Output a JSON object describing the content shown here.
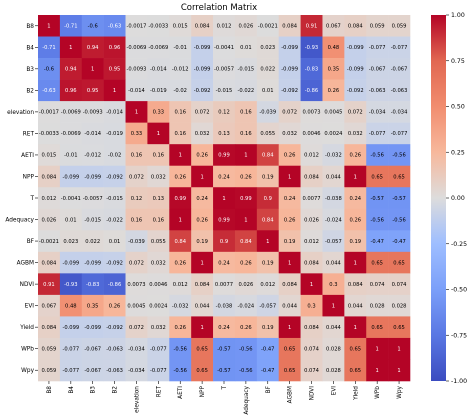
{
  "chart_data": {
    "type": "heatmap",
    "title": "Correlation Matrix",
    "labels": [
      "B8",
      "B4",
      "B3",
      "B2",
      "elevation",
      "RET",
      "AETI",
      "NPP",
      "T",
      "Adequacy",
      "BF",
      "AGBM",
      "NDVI",
      "EVI",
      "Yield",
      "WPb",
      "Wpy"
    ],
    "cells": [
      [
        "1",
        "-0.71",
        "-0.6",
        "-0.63",
        "-0.0017",
        "-0.0033",
        "0.015",
        "0.084",
        "0.012",
        "0.026",
        "-0.0021",
        "0.084",
        "0.91",
        "0.067",
        "0.084",
        "0.059",
        "0.059"
      ],
      [
        "-0.71",
        "1",
        "0.94",
        "0.96",
        "-0.0069",
        "-0.0069",
        "-0.01",
        "-0.099",
        "-0.0041",
        "0.01",
        "0.023",
        "-0.099",
        "-0.93",
        "0.48",
        "-0.099",
        "-0.077",
        "-0.077"
      ],
      [
        "-0.6",
        "0.94",
        "1",
        "0.95",
        "-0.0093",
        "-0.014",
        "-0.012",
        "-0.099",
        "-0.0057",
        "-0.015",
        "0.022",
        "-0.099",
        "-0.83",
        "0.35",
        "-0.099",
        "-0.067",
        "-0.067"
      ],
      [
        "-0.63",
        "0.96",
        "0.95",
        "1",
        "-0.014",
        "-0.019",
        "-0.02",
        "-0.092",
        "-0.015",
        "-0.022",
        "0.01",
        "-0.092",
        "-0.86",
        "0.26",
        "-0.092",
        "-0.063",
        "-0.063"
      ],
      [
        "-0.0017",
        "-0.0069",
        "-0.0093",
        "-0.014",
        "1",
        "0.33",
        "0.16",
        "0.072",
        "0.12",
        "0.16",
        "-0.039",
        "0.072",
        "0.0073",
        "0.0045",
        "0.072",
        "-0.034",
        "-0.034"
      ],
      [
        "-0.0033",
        "-0.0069",
        "-0.014",
        "-0.019",
        "0.33",
        "1",
        "0.16",
        "0.032",
        "0.13",
        "0.16",
        "0.055",
        "0.032",
        "0.0046",
        "0.0024",
        "0.032",
        "-0.077",
        "-0.077"
      ],
      [
        "0.015",
        "-0.01",
        "-0.012",
        "-0.02",
        "0.16",
        "0.16",
        "1",
        "0.26",
        "0.99",
        "1",
        "0.84",
        "0.26",
        "0.012",
        "-0.032",
        "0.26",
        "-0.56",
        "-0.56"
      ],
      [
        "0.084",
        "-0.099",
        "-0.099",
        "-0.092",
        "0.072",
        "0.032",
        "0.26",
        "1",
        "0.24",
        "0.26",
        "0.19",
        "1",
        "0.084",
        "0.044",
        "1",
        "0.65",
        "0.65"
      ],
      [
        "0.012",
        "-0.0041",
        "-0.0057",
        "-0.015",
        "0.12",
        "0.13",
        "0.99",
        "0.24",
        "1",
        "0.99",
        "0.9",
        "0.24",
        "0.0077",
        "-0.038",
        "0.24",
        "-0.57",
        "-0.57"
      ],
      [
        "0.026",
        "0.01",
        "-0.015",
        "-0.022",
        "0.16",
        "0.16",
        "1",
        "0.26",
        "0.99",
        "1",
        "0.84",
        "0.26",
        "0.026",
        "-0.024",
        "0.26",
        "-0.56",
        "-0.56"
      ],
      [
        "-0.0021",
        "0.023",
        "0.022",
        "0.01",
        "-0.039",
        "0.055",
        "0.84",
        "0.19",
        "0.9",
        "0.84",
        "1",
        "0.19",
        "0.012",
        "-0.057",
        "0.19",
        "-0.47",
        "-0.47"
      ],
      [
        "0.084",
        "-0.099",
        "-0.099",
        "-0.092",
        "0.072",
        "0.032",
        "0.26",
        "1",
        "0.24",
        "0.26",
        "0.19",
        "1",
        "0.084",
        "0.044",
        "1",
        "0.65",
        "0.65"
      ],
      [
        "0.91",
        "-0.93",
        "-0.83",
        "-0.86",
        "0.0073",
        "0.0046",
        "0.012",
        "0.084",
        "0.0077",
        "0.026",
        "0.012",
        "0.084",
        "1",
        "0.3",
        "0.084",
        "0.074",
        "0.074"
      ],
      [
        "0.067",
        "0.48",
        "0.35",
        "0.26",
        "0.0045",
        "0.0024",
        "-0.032",
        "0.044",
        "-0.038",
        "-0.024",
        "-0.057",
        "0.044",
        "0.3",
        "1",
        "0.044",
        "0.028",
        "0.028"
      ],
      [
        "0.084",
        "-0.099",
        "-0.099",
        "-0.092",
        "0.072",
        "0.032",
        "0.26",
        "1",
        "0.24",
        "0.26",
        "0.19",
        "1",
        "0.084",
        "0.044",
        "1",
        "0.65",
        "0.65"
      ],
      [
        "0.059",
        "-0.077",
        "-0.067",
        "-0.063",
        "-0.034",
        "-0.077",
        "-0.56",
        "0.65",
        "-0.57",
        "-0.56",
        "-0.47",
        "0.65",
        "0.074",
        "0.028",
        "0.65",
        "1",
        "1"
      ],
      [
        "0.059",
        "-0.077",
        "-0.067",
        "-0.063",
        "-0.034",
        "-0.077",
        "-0.56",
        "0.65",
        "-0.57",
        "-0.56",
        "-0.47",
        "0.65",
        "0.074",
        "0.028",
        "0.65",
        "1",
        "1"
      ]
    ],
    "colorscale": "coolwarm",
    "vmin": -1.0,
    "vmax": 1.0,
    "colorbar_ticks": [
      "1.00",
      "0.75",
      "0.50",
      "0.25",
      "0.00",
      "-0.25",
      "-0.50",
      "-0.75",
      "-1.00"
    ],
    "grid": false,
    "legend": "colorbar-right"
  }
}
